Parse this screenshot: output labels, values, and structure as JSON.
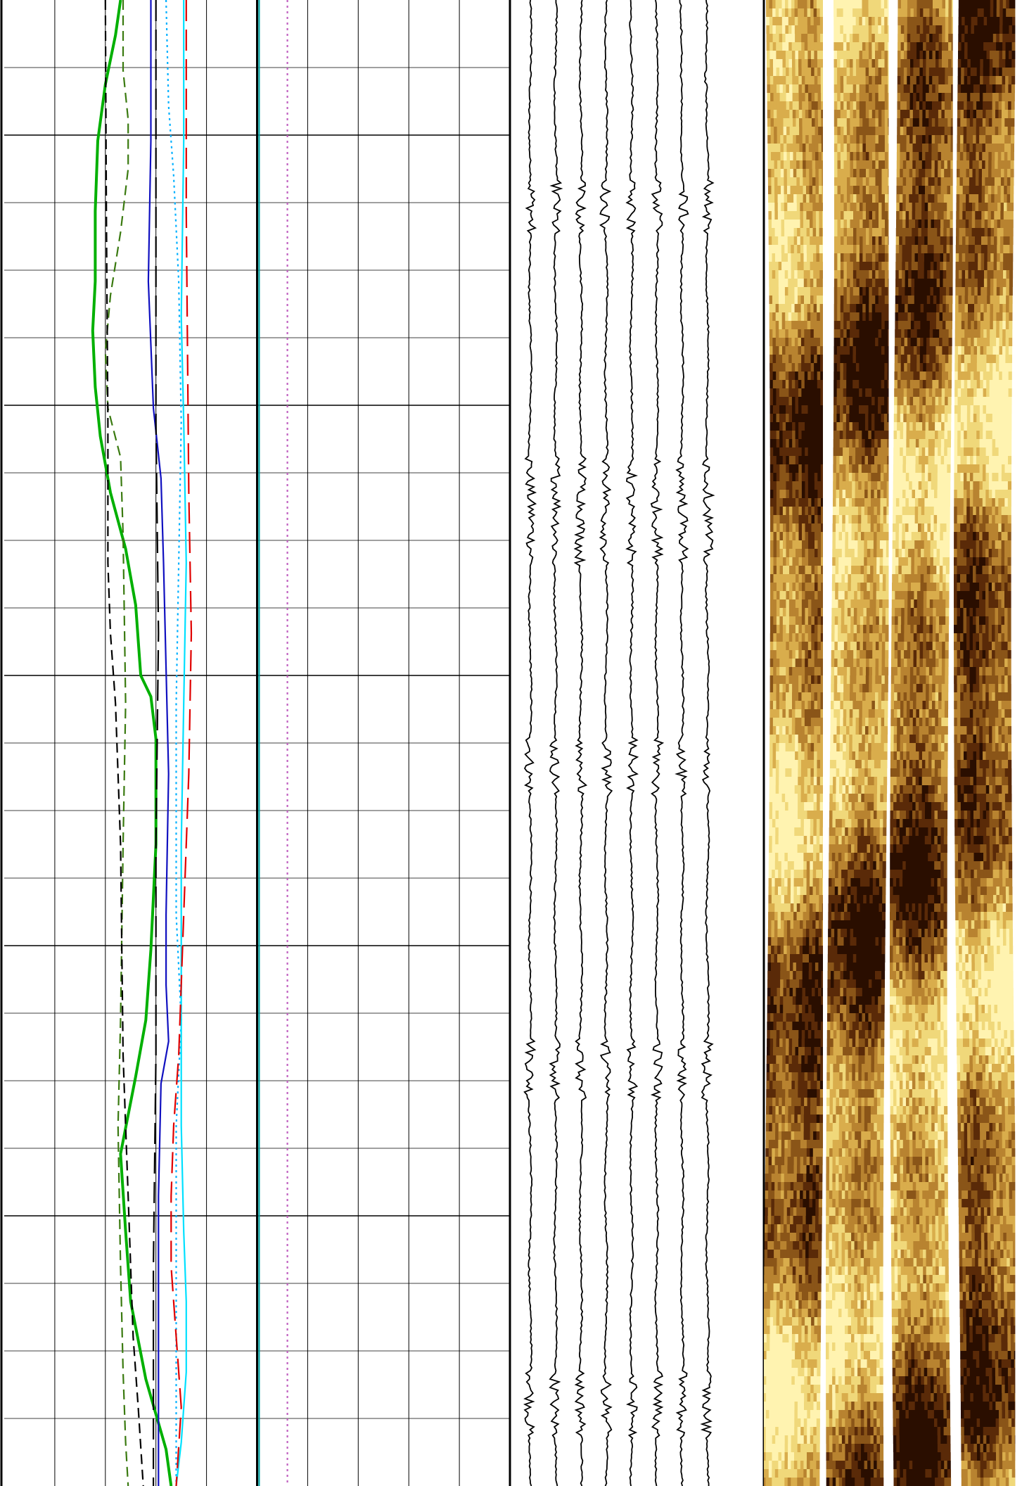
{
  "chart_data": [
    {
      "type": "line",
      "track": "track-1",
      "x_divisions": 10,
      "depth_divisions": 22,
      "depth_range": [
        0,
        2112
      ],
      "series": [
        {
          "color": "#00b000",
          "style": "solid",
          "x": [
            2.3,
            2.2,
            2.0,
            1.85,
            1.8,
            1.8,
            1.75,
            1.8,
            1.9,
            2.1,
            2.4,
            2.6,
            2.7,
            2.9,
            3.0,
            3.0,
            2.9,
            2.8,
            2.6,
            2.3,
            2.4,
            2.5,
            2.8,
            3.2,
            3.3
          ],
          "depth": [
            0,
            50,
            120,
            200,
            300,
            400,
            470,
            550,
            620,
            700,
            780,
            860,
            960,
            990,
            1050,
            1200,
            1350,
            1450,
            1530,
            1640,
            1750,
            1850,
            1960,
            2060,
            2112
          ]
        },
        {
          "color": "#3a7a10",
          "style": "dashed",
          "x": [
            2.35,
            2.35,
            2.45,
            2.45,
            2.3,
            2.1,
            2.0,
            2.05,
            2.3,
            2.35,
            2.4,
            2.35,
            2.3,
            2.25,
            2.3,
            2.35,
            2.4,
            2.45
          ],
          "depth": [
            0,
            100,
            170,
            240,
            330,
            420,
            500,
            580,
            650,
            760,
            1000,
            1200,
            1450,
            1600,
            1800,
            1950,
            2050,
            2112
          ]
        },
        {
          "color": "#000000",
          "style": "dashed",
          "x": [
            2.0,
            2.02,
            2.05,
            2.05,
            2.1,
            2.2,
            2.3,
            2.35,
            2.45,
            2.55,
            2.65,
            2.75
          ],
          "depth": [
            0,
            300,
            600,
            800,
            900,
            1000,
            1200,
            1500,
            1700,
            1900,
            2000,
            2112
          ]
        },
        {
          "color": "#1010c0",
          "style": "solid",
          "x": [
            2.9,
            2.9,
            2.85,
            2.95,
            3.1,
            3.15,
            3.2,
            3.25,
            3.2,
            3.2,
            3.25,
            3.1,
            3.05,
            3.05,
            3.05
          ],
          "depth": [
            0,
            200,
            400,
            580,
            680,
            800,
            950,
            1100,
            1300,
            1400,
            1480,
            1540,
            1700,
            2000,
            2112
          ]
        },
        {
          "color": "#000000",
          "style": "dashed-long",
          "x": [
            3.0,
            3.0,
            3.0,
            3.05,
            3.0,
            3.0,
            2.95,
            2.95
          ],
          "depth": [
            0,
            300,
            600,
            900,
            1200,
            1500,
            1800,
            2112
          ]
        },
        {
          "color": "#00b0ff",
          "style": "dotted",
          "x": [
            3.2,
            3.25,
            3.35,
            3.45,
            3.5,
            3.45,
            3.4,
            3.4,
            3.5,
            3.4,
            3.4,
            3.4
          ],
          "depth": [
            0,
            150,
            250,
            400,
            600,
            800,
            1000,
            1300,
            1450,
            1600,
            1900,
            2112
          ]
        },
        {
          "color": "#00e0ff",
          "style": "solid",
          "x": [
            3.55,
            3.55,
            3.5,
            3.55,
            3.6,
            3.55,
            3.5,
            3.5,
            3.5,
            3.55,
            3.6,
            3.6,
            3.5,
            3.4
          ],
          "depth": [
            0,
            200,
            450,
            600,
            800,
            1000,
            1200,
            1400,
            1600,
            1750,
            1850,
            1950,
            2050,
            2112
          ]
        },
        {
          "color": "#e00000",
          "style": "dashed-long",
          "x": [
            3.6,
            3.6,
            3.65,
            3.7,
            3.65,
            3.55,
            3.45,
            3.35,
            3.3,
            3.3,
            3.4,
            3.5,
            3.4
          ],
          "depth": [
            0,
            300,
            700,
            900,
            1100,
            1300,
            1500,
            1600,
            1700,
            1800,
            1900,
            2000,
            2112
          ]
        },
        {
          "color": "#00a0a0",
          "style": "solid",
          "x": [
            5.04,
            5.04
          ],
          "depth": [
            0,
            2112
          ]
        },
        {
          "color": "#c060c0",
          "style": "dotted",
          "x": [
            5.6,
            5.6
          ],
          "depth": [
            0,
            2112
          ]
        }
      ]
    },
    {
      "type": "line",
      "track": "track-2",
      "traces": 8,
      "baselines": [
        0.08,
        0.18,
        0.28,
        0.38,
        0.48,
        0.58,
        0.68,
        0.78
      ],
      "noisy_zones": [
        [
          260,
          330
        ],
        [
          650,
          800
        ],
        [
          1050,
          1130
        ],
        [
          1480,
          1560
        ],
        [
          1950,
          2040
        ]
      ],
      "step_offsets": [
        [
          0.6,
          -0.04
        ],
        [
          0.7,
          0.02
        ]
      ],
      "color": "#000000"
    },
    {
      "type": "heatmap",
      "track": "track-3",
      "pads": 4,
      "palette": [
        "#2a0e00",
        "#5a2a08",
        "#8a5518",
        "#b88330",
        "#d9ad4c",
        "#f0d87a",
        "#fff3b0"
      ],
      "gap_color": "#ffffff"
    }
  ]
}
